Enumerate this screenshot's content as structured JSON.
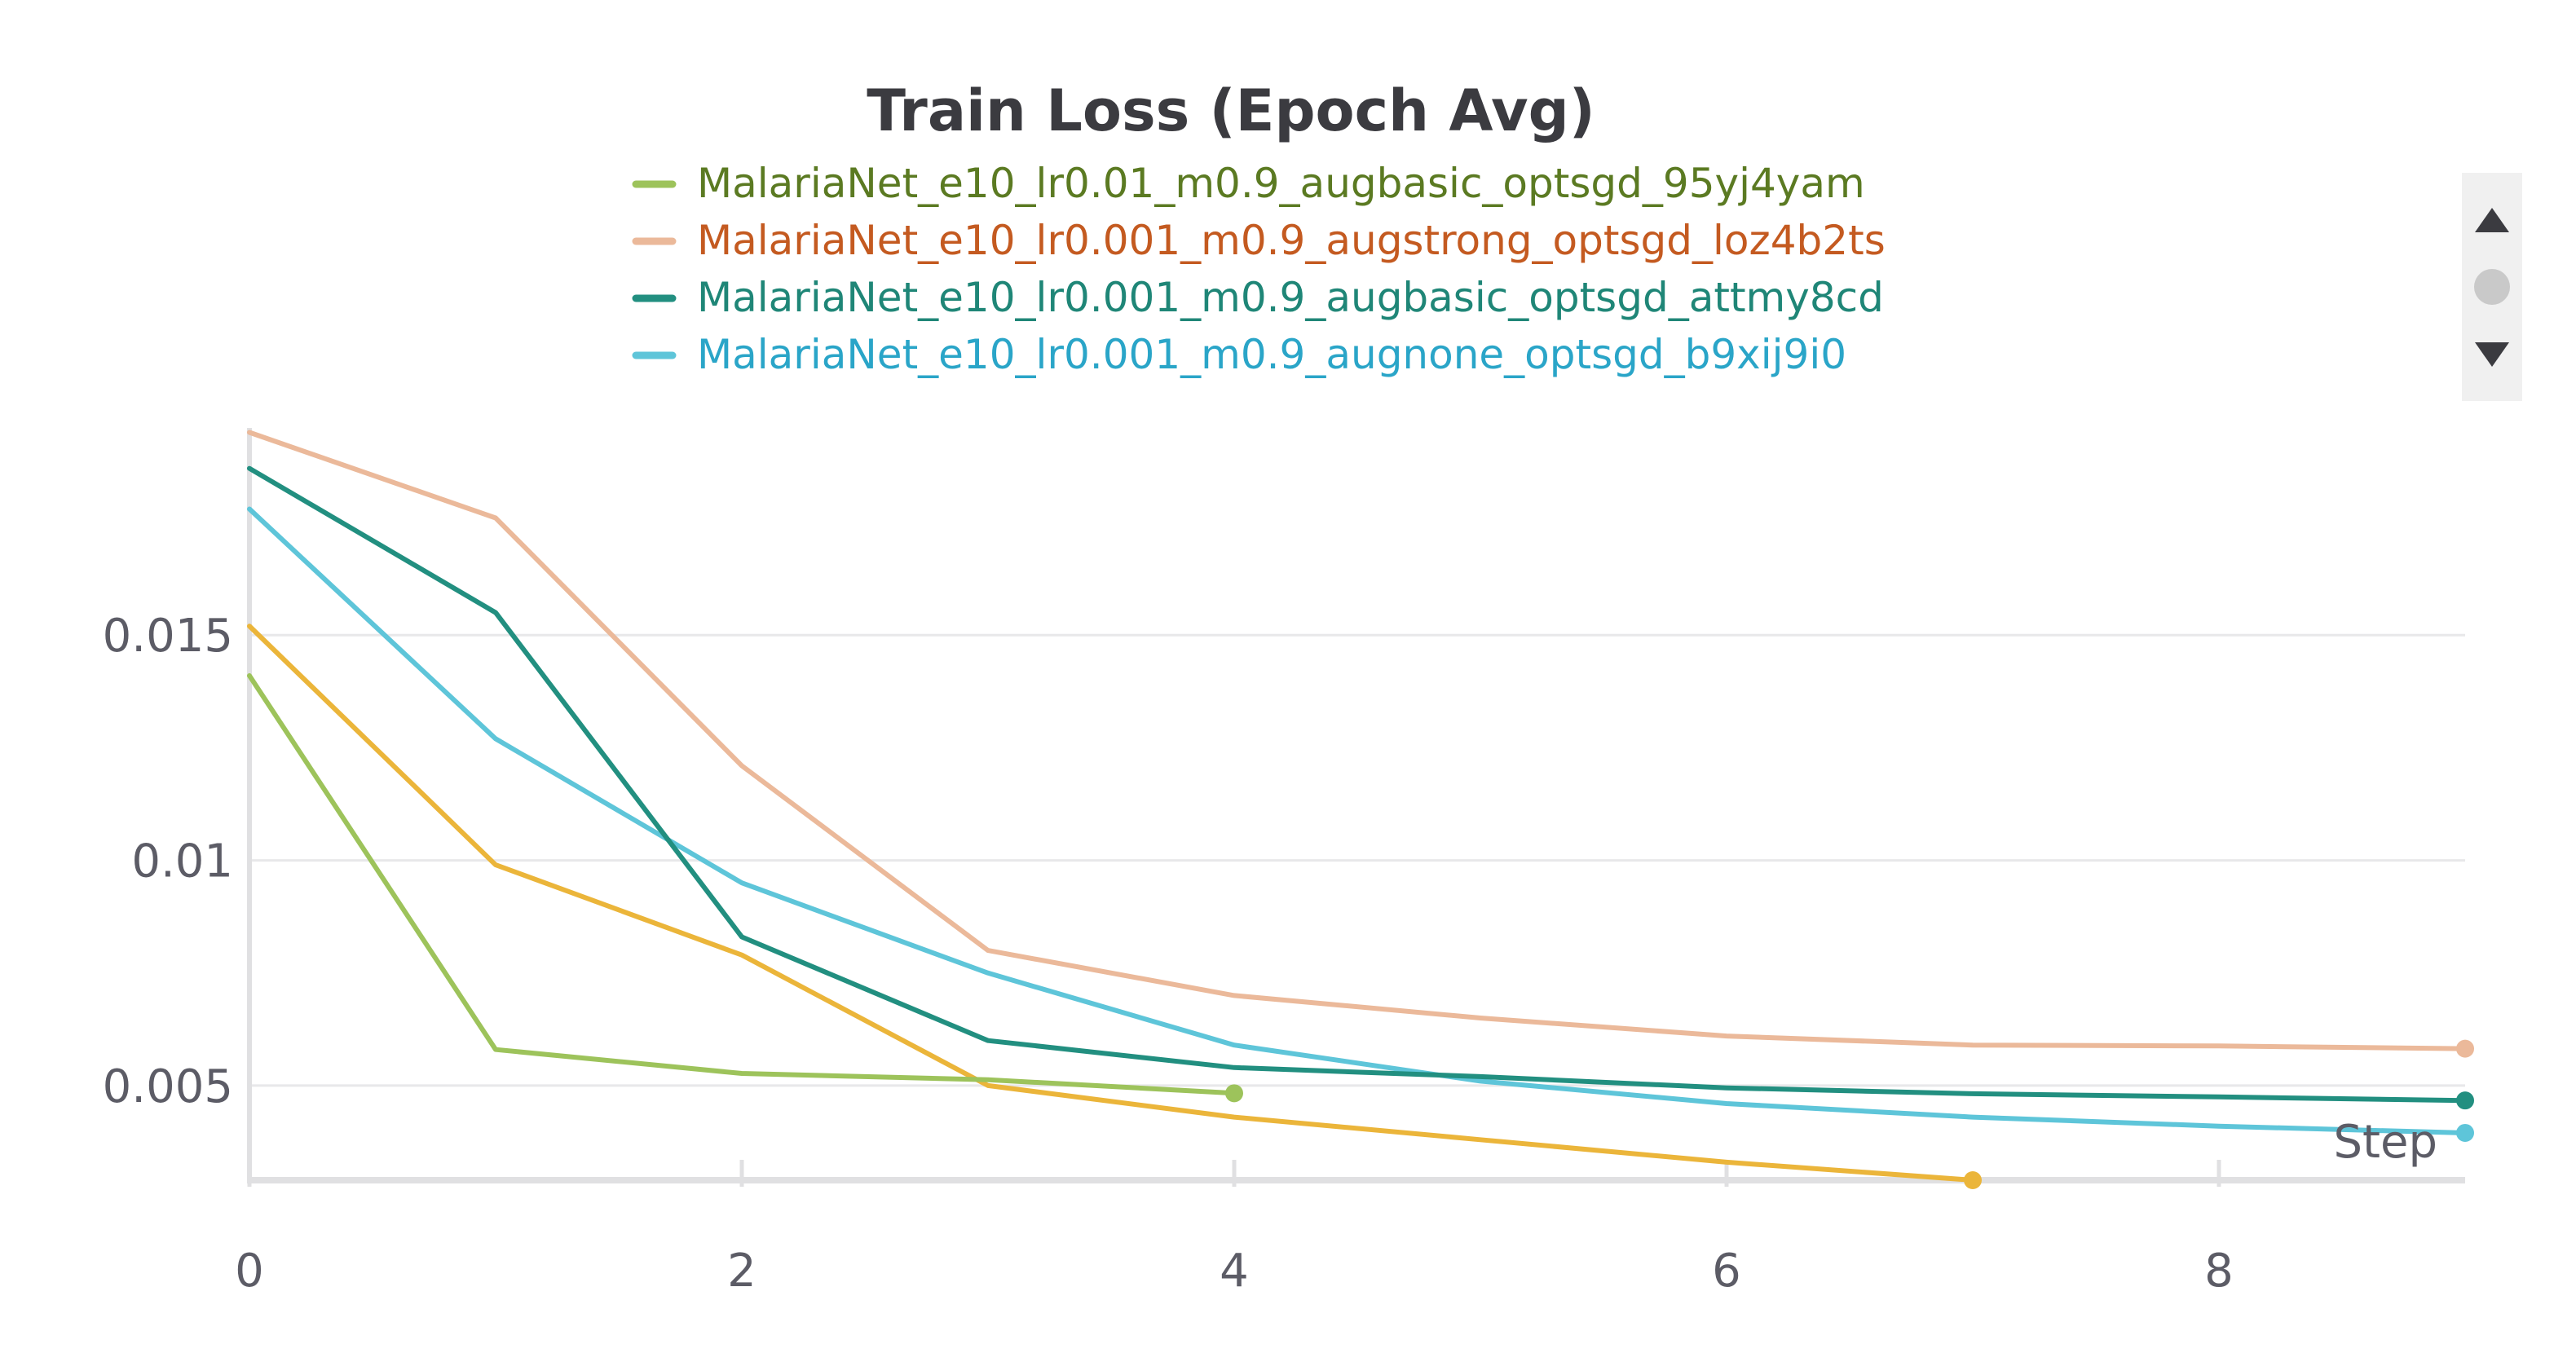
{
  "chart_data": {
    "type": "line",
    "title": "Train Loss (Epoch Avg)",
    "xlabel": "Step",
    "ylabel": "",
    "xlim": [
      0,
      9
    ],
    "ylim": [
      0.0029,
      0.0196
    ],
    "x_ticks": [
      0,
      2,
      4,
      6,
      8
    ],
    "y_ticks": [
      0.005,
      0.01,
      0.015
    ],
    "y_tick_labels": [
      "0.005",
      "0.01",
      "0.015"
    ],
    "grid": true,
    "legend_position": "top",
    "series": [
      {
        "name": "MalariaNet_e10_lr0.01_m0.9_augbasic_optsgd_95yj4yam",
        "color": "#9dc35b",
        "text_color": "#5b7a22",
        "in_legend": true,
        "x": [
          0,
          1,
          2,
          3,
          4
        ],
        "y": [
          0.0141,
          0.0058,
          0.00527,
          0.00513,
          0.00483
        ]
      },
      {
        "name": "MalariaNet_e10_lr0.001_m0.9_augstrong_optsgd_loz4b2ts",
        "color": "#ebb99a",
        "text_color": "#c45a20",
        "in_legend": true,
        "x": [
          0,
          1,
          2,
          3,
          4,
          5,
          6,
          7,
          8,
          9
        ],
        "y": [
          0.0195,
          0.0176,
          0.0121,
          0.008,
          0.007,
          0.0065,
          0.0061,
          0.0059,
          0.00588,
          0.00582
        ]
      },
      {
        "name": "MalariaNet_e10_lr0.001_m0.9_augbasic_optsgd_attmy8cd",
        "color": "#228f80",
        "text_color": "#1f8677",
        "in_legend": true,
        "x": [
          0,
          1,
          2,
          3,
          4,
          5,
          6,
          7,
          8,
          9
        ],
        "y": [
          0.0187,
          0.0155,
          0.0083,
          0.006,
          0.0054,
          0.0052,
          0.00495,
          0.00482,
          0.00475,
          0.00467
        ]
      },
      {
        "name": "MalariaNet_e10_lr0.001_m0.9_augnone_optsgd_b9xij9i0",
        "color": "#5ec5d9",
        "text_color": "#2aa5c8",
        "in_legend": true,
        "x": [
          0,
          1,
          2,
          3,
          4,
          5,
          6,
          7,
          8,
          9
        ],
        "y": [
          0.0178,
          0.0127,
          0.0095,
          0.0075,
          0.0059,
          0.0051,
          0.0046,
          0.0043,
          0.0041,
          0.00395
        ]
      },
      {
        "name": "",
        "color": "#ebb53a",
        "text_color": "#ebb53a",
        "in_legend": false,
        "x": [
          0,
          1,
          2,
          3,
          4,
          5,
          6,
          7
        ],
        "y": [
          0.0152,
          0.0099,
          0.0079,
          0.005,
          0.0043,
          0.0038,
          0.0033,
          0.0029
        ]
      }
    ]
  },
  "legend_scroller": {
    "up_icon": "triangle-up-icon",
    "dot_icon": "circle-icon",
    "down_icon": "triangle-down-icon"
  }
}
